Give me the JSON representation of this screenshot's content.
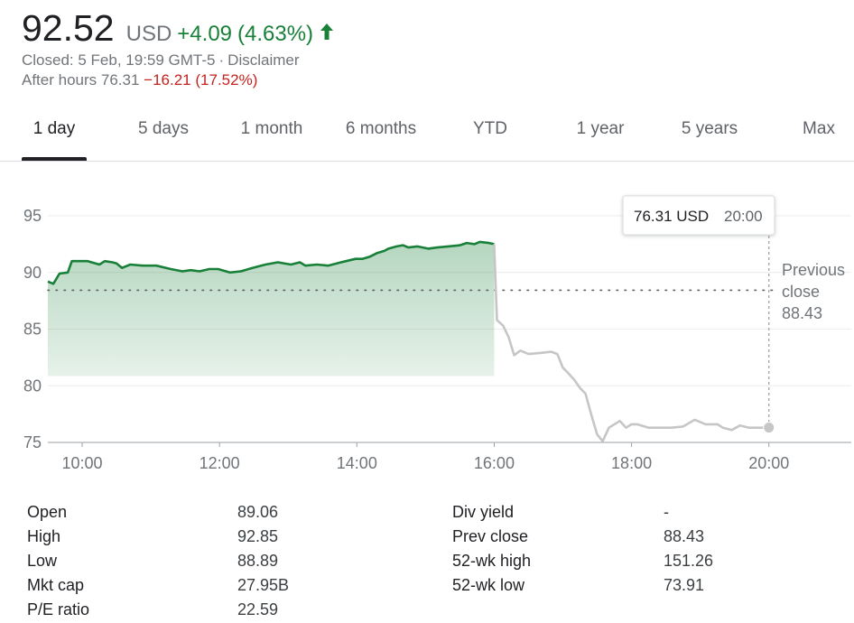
{
  "quote": {
    "price": "92.52",
    "currency": "USD",
    "change": "+4.09",
    "change_pct": "(4.63%)",
    "direction_icon": "arrow-up-icon",
    "closed_label": "Closed: 5 Feb, 19:59 GMT-5",
    "separator": "·",
    "disclaimer": "Disclaimer",
    "after_hours_label": "After hours",
    "after_hours_price": "76.31",
    "after_hours_change": "−16.21",
    "after_hours_pct": "(17.52%)",
    "up_color": "#188038",
    "down_color": "#c5221f"
  },
  "tabs": [
    {
      "label": "1 day",
      "active": true
    },
    {
      "label": "5 days",
      "active": false
    },
    {
      "label": "1 month",
      "active": false
    },
    {
      "label": "6 months",
      "active": false
    },
    {
      "label": "YTD",
      "active": false
    },
    {
      "label": "1 year",
      "active": false
    },
    {
      "label": "5 years",
      "active": false
    },
    {
      "label": "Max",
      "active": false
    }
  ],
  "chart_data": {
    "type": "line",
    "title": "",
    "xlabel": "",
    "ylabel": "",
    "xlim": [
      9.5,
      21.2
    ],
    "ylim": [
      75,
      95
    ],
    "x_ticks": [
      10,
      12,
      14,
      16,
      18,
      20
    ],
    "x_tick_labels": [
      "10:00",
      "12:00",
      "14:00",
      "16:00",
      "18:00",
      "20:00"
    ],
    "y_ticks": [
      75,
      80,
      85,
      90,
      95
    ],
    "y_tick_labels": [
      "75",
      "80",
      "85",
      "90",
      "95"
    ],
    "grid": "horizontal",
    "previous_close": 88.43,
    "previous_close_label": "Previous close",
    "previous_close_value_label": "88.43",
    "tooltip": {
      "price": "76.31 USD",
      "time": "20:00"
    },
    "series": [
      {
        "session": "regular",
        "color": "#188038",
        "fill": true,
        "x": [
          9.5,
          9.58,
          9.67,
          9.79,
          9.85,
          9.96,
          10.08,
          10.25,
          10.33,
          10.44,
          10.5,
          10.58,
          10.7,
          10.88,
          11.08,
          11.29,
          11.46,
          11.58,
          11.71,
          11.85,
          11.98,
          12.15,
          12.31,
          12.48,
          12.67,
          12.85,
          13.04,
          13.17,
          13.25,
          13.42,
          13.58,
          13.77,
          13.98,
          14.08,
          14.19,
          14.29,
          14.4,
          14.46,
          14.58,
          14.67,
          14.75,
          14.88,
          15.04,
          15.17,
          15.33,
          15.5,
          15.6,
          15.71,
          15.79,
          15.92,
          16.0
        ],
        "y": [
          89.2,
          89.0,
          89.9,
          90.0,
          91.0,
          91.0,
          91.0,
          90.7,
          91.0,
          90.9,
          90.8,
          90.4,
          90.7,
          90.6,
          90.6,
          90.3,
          90.1,
          90.2,
          90.1,
          90.3,
          90.3,
          90.0,
          90.1,
          90.4,
          90.7,
          90.9,
          90.7,
          90.9,
          90.6,
          90.7,
          90.6,
          90.9,
          91.2,
          91.2,
          91.4,
          91.7,
          91.9,
          92.1,
          92.3,
          92.4,
          92.2,
          92.3,
          92.1,
          92.2,
          92.3,
          92.4,
          92.6,
          92.5,
          92.7,
          92.6,
          92.5
        ]
      },
      {
        "session": "after-hours",
        "color": "#c6c6c6",
        "fill": false,
        "x": [
          16.0,
          16.04,
          16.13,
          16.21,
          16.29,
          16.38,
          16.5,
          16.67,
          16.83,
          16.92,
          17.0,
          17.08,
          17.17,
          17.25,
          17.33,
          17.42,
          17.5,
          17.58,
          17.67,
          17.83,
          17.92,
          18.0,
          18.08,
          18.25,
          18.42,
          18.58,
          18.75,
          18.92,
          19.08,
          19.25,
          19.33,
          19.46,
          19.58,
          19.71,
          19.88,
          20.0
        ],
        "y": [
          92.5,
          85.8,
          85.3,
          84.3,
          82.7,
          83.1,
          82.8,
          82.9,
          83.0,
          82.8,
          81.6,
          81.1,
          80.5,
          79.8,
          79.3,
          77.3,
          75.7,
          75.1,
          76.3,
          76.9,
          76.3,
          76.6,
          76.6,
          76.3,
          76.3,
          76.3,
          76.4,
          77.0,
          76.6,
          76.6,
          76.3,
          76.1,
          76.5,
          76.3,
          76.3,
          76.31
        ]
      }
    ]
  },
  "stats": {
    "left": [
      {
        "label": "Open",
        "value": "89.06"
      },
      {
        "label": "High",
        "value": "92.85"
      },
      {
        "label": "Low",
        "value": "88.89"
      },
      {
        "label": "Mkt cap",
        "value": "27.95B"
      },
      {
        "label": "P/E ratio",
        "value": "22.59"
      }
    ],
    "right": [
      {
        "label": "Div yield",
        "value": "-"
      },
      {
        "label": "Prev close",
        "value": "88.43"
      },
      {
        "label": "52-wk high",
        "value": "151.26"
      },
      {
        "label": "52-wk low",
        "value": "73.91"
      }
    ]
  }
}
